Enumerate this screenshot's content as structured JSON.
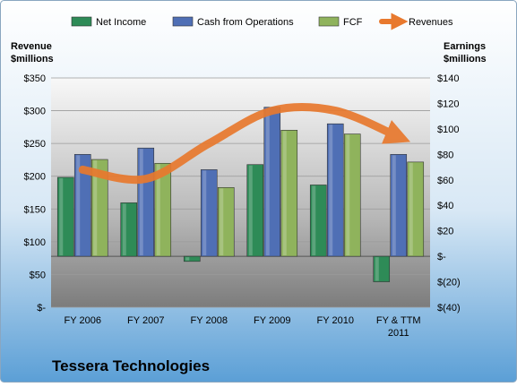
{
  "chart_data": {
    "type": "bar",
    "title": "Tessera Technologies",
    "categories": [
      "FY 2006",
      "FY 2007",
      "FY 2008",
      "FY 2009",
      "FY 2010",
      [
        "FY & TTM",
        "2011"
      ]
    ],
    "left_axis": {
      "label": [
        "Revenue",
        "$millions"
      ],
      "range": [
        0,
        350
      ],
      "ticks": [
        {
          "value": 0,
          "label": "$-"
        },
        {
          "value": 50,
          "label": "$50"
        },
        {
          "value": 100,
          "label": "$100"
        },
        {
          "value": 150,
          "label": "$150"
        },
        {
          "value": 200,
          "label": "$200"
        },
        {
          "value": 250,
          "label": "$250"
        },
        {
          "value": 300,
          "label": "$300"
        },
        {
          "value": 350,
          "label": "$350"
        }
      ]
    },
    "right_axis": {
      "label": [
        "Earnings",
        "$millions"
      ],
      "range": [
        -40,
        140
      ],
      "ticks": [
        {
          "value": -40,
          "label": "$(40)"
        },
        {
          "value": -20,
          "label": "$(20)"
        },
        {
          "value": 0,
          "label": "$-"
        },
        {
          "value": 20,
          "label": "$20"
        },
        {
          "value": 40,
          "label": "$40"
        },
        {
          "value": 60,
          "label": "$60"
        },
        {
          "value": 80,
          "label": "$80"
        },
        {
          "value": 100,
          "label": "$100"
        },
        {
          "value": 120,
          "label": "$120"
        },
        {
          "value": 140,
          "label": "$140"
        }
      ]
    },
    "series": [
      {
        "name": "Net Income",
        "kind": "bar",
        "axis": "right",
        "color": "#2e8b57",
        "values": [
          62,
          42,
          -4,
          72,
          56,
          -20
        ]
      },
      {
        "name": "Cash from Operations",
        "kind": "bar",
        "axis": "right",
        "color": "#4f6fb5",
        "values": [
          80,
          85,
          68,
          117,
          104,
          80
        ]
      },
      {
        "name": "FCF",
        "kind": "bar",
        "axis": "right",
        "color": "#8fb35c",
        "values": [
          76,
          73,
          54,
          99,
          96,
          74
        ]
      },
      {
        "name": "Revenues",
        "kind": "line",
        "axis": "left",
        "color": "#e8792e",
        "values": [
          210,
          196,
          250,
          300,
          300,
          260
        ]
      }
    ],
    "legend_position": "top",
    "grid": true
  }
}
